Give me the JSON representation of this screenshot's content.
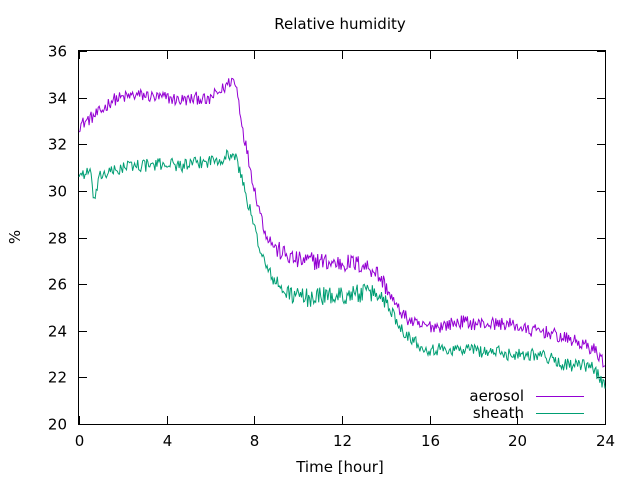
{
  "chart_data": {
    "type": "line",
    "title": "Relative humidity",
    "xlabel": "Time [hour]",
    "ylabel": "%",
    "xlim": [
      0,
      24
    ],
    "ylim": [
      20,
      36
    ],
    "xticks": [
      0,
      4,
      8,
      12,
      16,
      20,
      24
    ],
    "yticks": [
      20,
      22,
      24,
      26,
      28,
      30,
      32,
      34,
      36
    ],
    "grid": false,
    "legend_position": "bottom-right",
    "series": [
      {
        "name": "aerosol",
        "color": "#9400d3",
        "x": [
          0,
          0.5,
          1,
          1.5,
          2,
          2.5,
          3,
          3.5,
          4,
          4.5,
          5,
          5.5,
          5.9,
          6,
          6.5,
          7,
          7.2,
          7.5,
          8,
          8.5,
          9,
          9.5,
          10,
          10.5,
          11,
          11.5,
          12,
          12.5,
          13,
          13.5,
          14,
          14.5,
          15,
          15.5,
          16,
          16.5,
          17,
          17.5,
          18,
          18.5,
          19,
          19.5,
          20,
          20.5,
          21,
          21.5,
          22,
          22.5,
          23,
          23.5,
          24
        ],
        "y": [
          32.8,
          33.1,
          33.4,
          33.9,
          34.0,
          34.1,
          34.1,
          34.0,
          34.0,
          33.9,
          33.9,
          34.0,
          33.8,
          34.0,
          34.3,
          34.8,
          34.4,
          32.5,
          30.1,
          28.2,
          27.5,
          27.2,
          27.0,
          27.0,
          27.0,
          26.9,
          26.9,
          26.9,
          26.8,
          26.6,
          25.9,
          25.0,
          24.5,
          24.2,
          24.2,
          24.2,
          24.3,
          24.4,
          24.3,
          24.3,
          24.3,
          24.3,
          24.2,
          24.0,
          24.0,
          23.9,
          23.7,
          23.6,
          23.4,
          23.2,
          22.6
        ]
      },
      {
        "name": "sheath",
        "color": "#009e73",
        "x": [
          0,
          0.5,
          0.7,
          1,
          1.5,
          2,
          2.5,
          3,
          3.5,
          4,
          4.5,
          5,
          5.5,
          6,
          6.5,
          7,
          7.2,
          7.5,
          8,
          8.5,
          9,
          9.5,
          10,
          10.5,
          11,
          11.5,
          12,
          12.5,
          13,
          13.5,
          14,
          14.5,
          15,
          15.5,
          16,
          16.5,
          17,
          17.5,
          18,
          18.5,
          19,
          19.5,
          20,
          20.5,
          21,
          21.5,
          22,
          22.5,
          23,
          23.5,
          24
        ],
        "y": [
          30.7,
          30.8,
          29.6,
          30.7,
          30.8,
          31.0,
          31.1,
          31.1,
          31.1,
          31.2,
          31.1,
          31.1,
          31.2,
          31.3,
          31.4,
          31.6,
          31.3,
          30.3,
          28.4,
          26.8,
          26.0,
          25.6,
          25.5,
          25.4,
          25.5,
          25.5,
          25.5,
          25.6,
          25.6,
          25.6,
          25.3,
          24.4,
          23.8,
          23.4,
          23.2,
          23.2,
          23.2,
          23.2,
          23.2,
          23.1,
          23.1,
          23.0,
          23.0,
          23.0,
          23.0,
          22.8,
          22.6,
          22.5,
          22.5,
          22.4,
          21.6
        ]
      }
    ]
  }
}
